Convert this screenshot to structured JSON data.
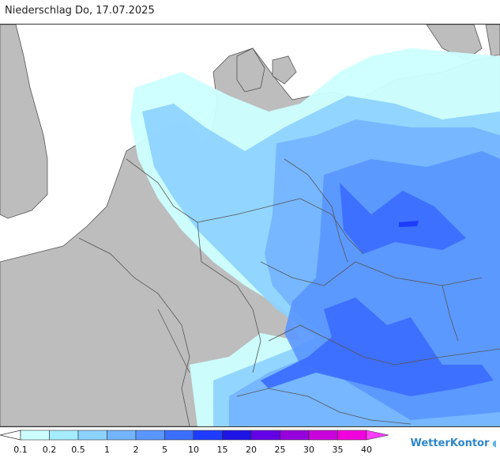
{
  "title": "Niederschlag Do, 17.07.2025",
  "legend": {
    "levels": [
      "0.1",
      "0.2",
      "0.5",
      "1",
      "2",
      "5",
      "10",
      "15",
      "20",
      "25",
      "30",
      "35",
      "40"
    ],
    "colors": [
      "#ccffff",
      "#a6ecff",
      "#8cd2ff",
      "#73b4ff",
      "#5a96ff",
      "#3c6eff",
      "#1e3cff",
      "#1e14e6",
      "#6400e6",
      "#9600dc",
      "#c800dc",
      "#f000dc",
      "#ff3cff"
    ]
  },
  "brand": {
    "name": "WetterKontor",
    "icon": "raindrop-icon"
  },
  "palette": {
    "land": "#bdbdbd",
    "sea": "#ffffff",
    "border": "#555555"
  }
}
